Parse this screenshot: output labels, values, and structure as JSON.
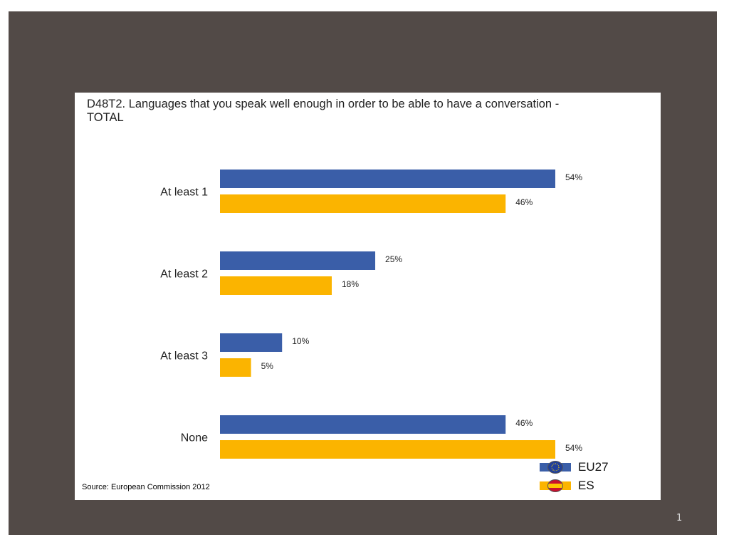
{
  "slide": {
    "page_number": "1"
  },
  "source": "Source: European Commission 2012",
  "colors": {
    "eu27": "#3a5ea8",
    "es": "#fbb400",
    "background": "#524a47"
  },
  "legend": {
    "items": [
      {
        "label": "EU27",
        "icon": "eu-flag-icon"
      },
      {
        "label": "ES",
        "icon": "spain-flag-icon"
      }
    ]
  },
  "chart_data": {
    "type": "bar",
    "orientation": "horizontal",
    "title": "D48T2. Languages that you speak well enough in order to be able to have a conversation - TOTAL",
    "categories": [
      "At least 1",
      "At least 2",
      "At least 3",
      "None"
    ],
    "series": [
      {
        "name": "EU27",
        "values": [
          54,
          25,
          10,
          46
        ],
        "labels": [
          "54%",
          "25%",
          "10%",
          "46%"
        ]
      },
      {
        "name": "ES",
        "values": [
          46,
          18,
          5,
          54
        ],
        "labels": [
          "46%",
          "18%",
          "5%",
          "54%"
        ]
      }
    ],
    "xlim": [
      0,
      54
    ],
    "grid": false,
    "legend_position": "bottom-right"
  }
}
